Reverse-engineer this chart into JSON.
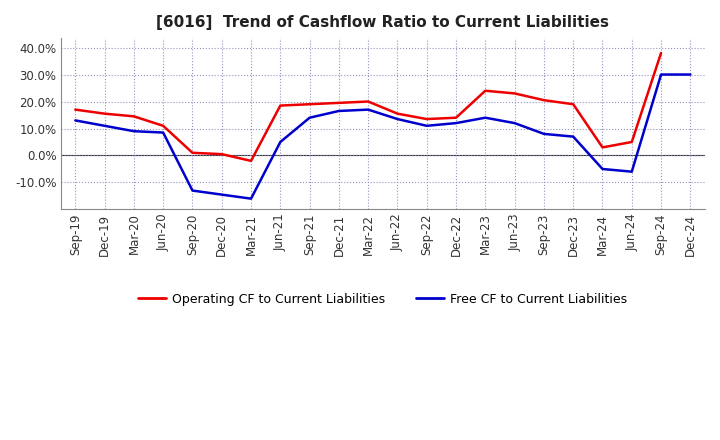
{
  "title": "[6016]  Trend of Cashflow Ratio to Current Liabilities",
  "x_labels": [
    "Sep-19",
    "Dec-19",
    "Mar-20",
    "Jun-20",
    "Sep-20",
    "Dec-20",
    "Mar-21",
    "Jun-21",
    "Sep-21",
    "Dec-21",
    "Mar-22",
    "Jun-22",
    "Sep-22",
    "Dec-22",
    "Mar-23",
    "Jun-23",
    "Sep-23",
    "Dec-23",
    "Mar-24",
    "Jun-24",
    "Sep-24",
    "Dec-24"
  ],
  "operating_cf": [
    0.17,
    0.155,
    0.145,
    0.11,
    0.01,
    0.005,
    -0.02,
    0.185,
    0.19,
    0.195,
    0.2,
    0.155,
    0.135,
    0.14,
    0.24,
    0.23,
    0.205,
    0.19,
    0.03,
    0.05,
    0.38,
    null
  ],
  "free_cf": [
    0.13,
    0.11,
    0.09,
    0.085,
    -0.13,
    -0.145,
    -0.16,
    0.05,
    0.14,
    0.165,
    0.17,
    0.135,
    0.11,
    0.12,
    0.14,
    0.12,
    0.08,
    0.07,
    -0.05,
    -0.06,
    0.3,
    0.3
  ],
  "operating_color": "#EE0000",
  "free_color": "#0000CC",
  "ylim_min": -0.2,
  "ylim_max": 0.435,
  "yticks": [
    -0.1,
    0.0,
    0.1,
    0.2,
    0.3,
    0.4
  ],
  "ytick_labels": [
    "-10.0%",
    "0.0%",
    "10.0%",
    "20.0%",
    "30.0%",
    "40.0%"
  ],
  "background_color": "#FFFFFF",
  "grid_color": "#8888BB",
  "legend_operating": "Operating CF to Current Liabilities",
  "legend_free": "Free CF to Current Liabilities",
  "title_fontsize": 11,
  "axis_fontsize": 8.5,
  "legend_fontsize": 9
}
